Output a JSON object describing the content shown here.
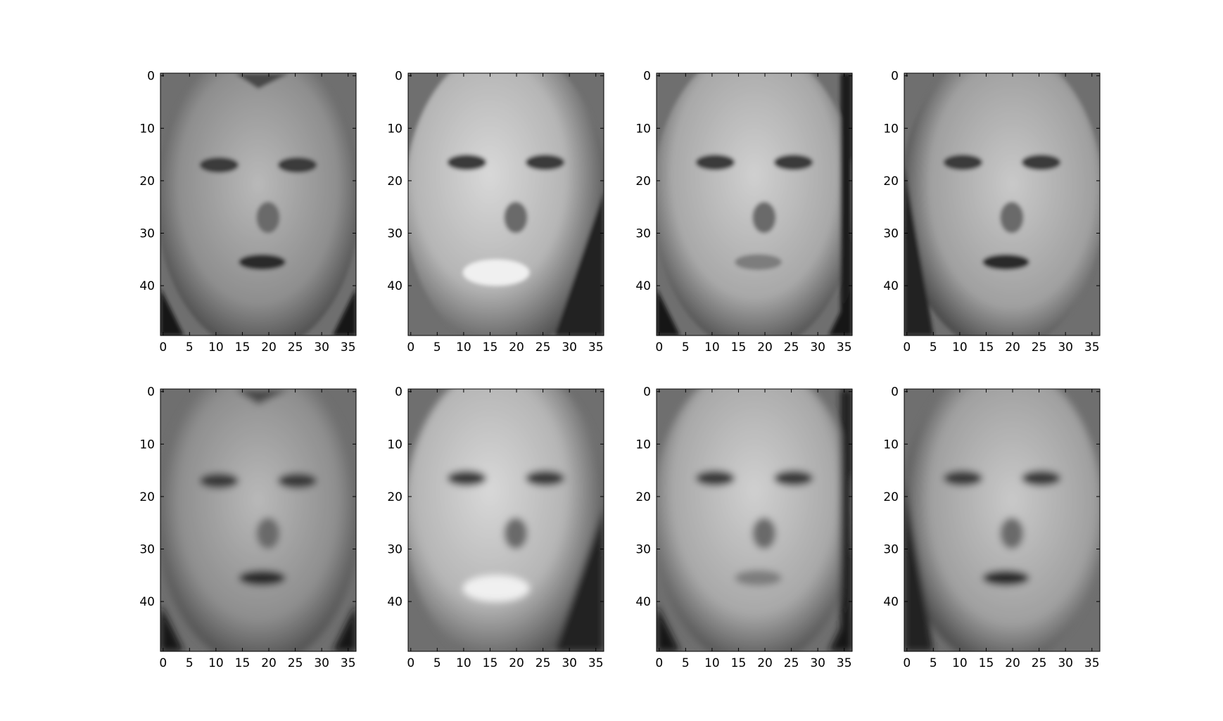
{
  "chart_data": {
    "type": "image_grid",
    "rows": 2,
    "cols": 4,
    "colormap": "gray",
    "image_shape": [
      50,
      37
    ],
    "xlim": [
      -0.5,
      36.5
    ],
    "ylim": [
      49.5,
      -0.5
    ],
    "xticks": [
      0,
      5,
      10,
      15,
      20,
      25,
      30,
      35
    ],
    "yticks": [
      0,
      10,
      20,
      30,
      40
    ],
    "xtick_labels": [
      "0",
      "5",
      "10",
      "15",
      "20",
      "25",
      "30",
      "35"
    ],
    "ytick_labels": [
      "0",
      "10",
      "20",
      "30",
      "40"
    ],
    "panels": [
      {
        "row": 0,
        "col": 0,
        "content": "grayscale face image"
      },
      {
        "row": 0,
        "col": 1,
        "content": "grayscale face image"
      },
      {
        "row": 0,
        "col": 2,
        "content": "grayscale face image"
      },
      {
        "row": 0,
        "col": 3,
        "content": "grayscale face image"
      },
      {
        "row": 1,
        "col": 0,
        "content": "grayscale face image (smoothed)"
      },
      {
        "row": 1,
        "col": 1,
        "content": "grayscale face image (smoothed)"
      },
      {
        "row": 1,
        "col": 2,
        "content": "grayscale face image (smoothed)"
      },
      {
        "row": 1,
        "col": 3,
        "content": "grayscale face image (smoothed)"
      }
    ]
  }
}
